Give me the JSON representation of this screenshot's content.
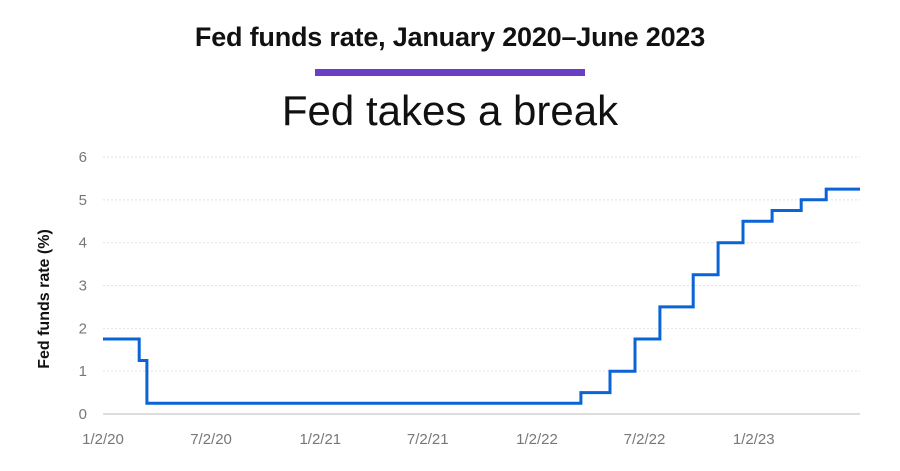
{
  "header": {
    "heading": "Fed funds rate, January 2020–June 2023",
    "accent_color": "#6a3ec6"
  },
  "chart_data": {
    "type": "line",
    "title": "Fed takes a break",
    "xlabel": "",
    "ylabel": "Fed funds rate (%)",
    "ylim": [
      0,
      6
    ],
    "xlim": [
      "2020-01-02",
      "2023-06-30"
    ],
    "yticks": [
      0,
      1,
      2,
      3,
      4,
      5,
      6
    ],
    "xticks": [
      "2020-01-02",
      "2020-07-02",
      "2021-01-02",
      "2021-07-02",
      "2022-01-02",
      "2022-07-02",
      "2023-01-02"
    ],
    "xtick_labels": [
      "1/2/20",
      "7/2/20",
      "1/2/21",
      "7/2/21",
      "1/2/22",
      "7/2/22",
      "1/2/23"
    ],
    "grid": true,
    "line_color": "#0a64d6",
    "series": [
      {
        "step": true,
        "x": [
          "2020-01-02",
          "2020-03-03",
          "2020-03-16",
          "2022-03-17",
          "2022-05-05",
          "2022-06-16",
          "2022-07-28",
          "2022-09-22",
          "2022-11-03",
          "2022-12-15",
          "2023-02-02",
          "2023-03-23",
          "2023-05-04",
          "2023-06-30"
        ],
        "values": [
          1.75,
          1.25,
          0.25,
          0.5,
          1.0,
          1.75,
          2.5,
          3.25,
          4.0,
          4.5,
          4.75,
          5.0,
          5.25,
          5.25
        ]
      }
    ]
  }
}
